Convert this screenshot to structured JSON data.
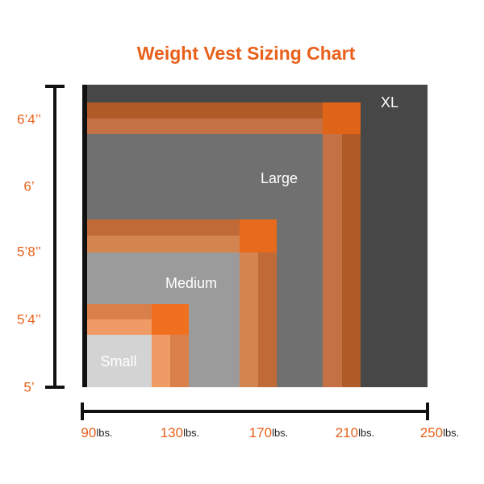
{
  "title": "Weight Vest Sizing Chart",
  "y_labels": [
    "6’4’’",
    "6’",
    "5’8’’",
    "5’4’’",
    "5’"
  ],
  "x_labels": [
    {
      "value": "90",
      "unit": "lbs."
    },
    {
      "value": "130",
      "unit": "lbs."
    },
    {
      "value": "170",
      "unit": "lbs."
    },
    {
      "value": "210",
      "unit": "lbs."
    },
    {
      "value": "250",
      "unit": "lbs."
    }
  ],
  "sizes": [
    "XL",
    "Large",
    "Medium",
    "Small"
  ]
}
